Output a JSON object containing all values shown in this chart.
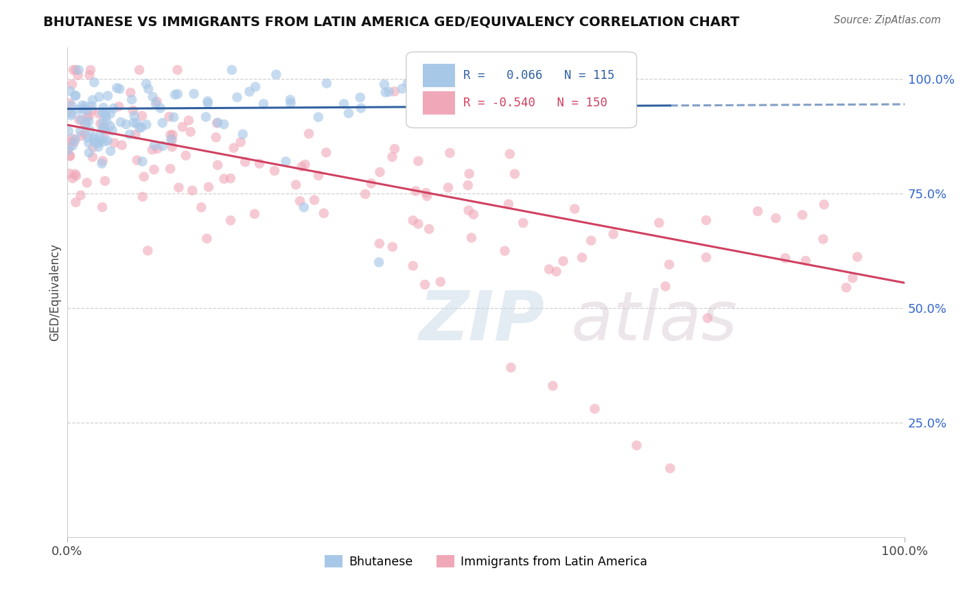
{
  "title": "BHUTANESE VS IMMIGRANTS FROM LATIN AMERICA GED/EQUIVALENCY CORRELATION CHART",
  "source": "Source: ZipAtlas.com",
  "ylabel": "GED/Equivalency",
  "xlim": [
    0.0,
    1.0
  ],
  "ylim": [
    0.0,
    1.07
  ],
  "ytick_labels": [
    "100.0%",
    "75.0%",
    "50.0%",
    "25.0%"
  ],
  "ytick_values": [
    1.0,
    0.75,
    0.5,
    0.25
  ],
  "xtick_labels": [
    "0.0%",
    "100.0%"
  ],
  "xtick_values": [
    0.0,
    1.0
  ],
  "blue_R": 0.066,
  "blue_N": 115,
  "pink_R": -0.54,
  "pink_N": 150,
  "blue_color": "#a8c8e8",
  "pink_color": "#f0a8b8",
  "blue_trend_color": "#3060a0",
  "pink_trend_color": "#d04060",
  "blue_trend_start_y": 0.935,
  "blue_trend_end_y": 0.945,
  "pink_trend_start_y": 0.9,
  "pink_trend_end_y": 0.555,
  "legend_label_blue": "Bhutanese",
  "legend_label_pink": "Immigrants from Latin America",
  "background_color": "#ffffff",
  "grid_color": "#d0d0d0"
}
